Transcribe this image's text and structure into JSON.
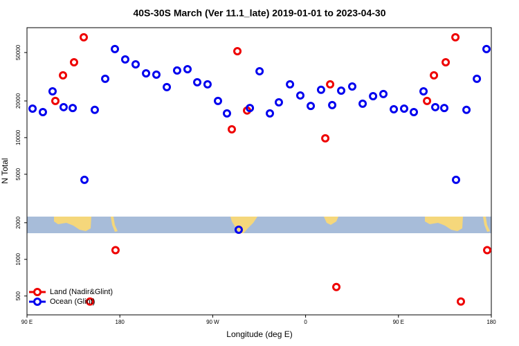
{
  "chart_data": {
    "type": "scatter",
    "title": "40S-30S March (Ver 11.1_late)   2019-01-01 to 2023-04-30",
    "x_label": "Longitude (deg E)",
    "y_label": "N Total",
    "log_y": true,
    "legend": "lower left",
    "xlim": [
      90,
      540
    ],
    "ylim": [
      350,
      80000
    ],
    "xticks": [
      {
        "value": 90,
        "label": "90 E"
      },
      180,
      {
        "value": 270,
        "label": "90 W"
      },
      {
        "value": 360,
        "label": "0"
      },
      {
        "value": 450,
        "label": "90 E"
      },
      {
        "value": 540,
        "label": "180"
      }
    ],
    "yticks": [
      500,
      1000,
      2000,
      5000,
      10000,
      20000,
      50000
    ],
    "series": [
      {
        "name": "Land (Nadir&Glint)",
        "color": "#ee0000",
        "x": [
          117.5,
          124.9,
          135.6,
          145.0,
          151.0,
          175.8,
          288.5,
          293.9,
          303.3,
          379.1,
          383.8,
          389.8,
          477.7,
          484.4,
          495.8,
          505.2,
          510.5,
          536.0
        ],
        "values": [
          20000,
          32500,
          41600,
          66700,
          450,
          1190,
          11700,
          51300,
          16700,
          9870,
          27400,
          593,
          20000,
          32500,
          41600,
          66700,
          450,
          1190
        ]
      },
      {
        "name": "Ocean (Glint)",
        "color": "#0000ee",
        "x": [
          95.4,
          105.4,
          114.8,
          125.5,
          134.3,
          145.7,
          155.7,
          165.8,
          175.2,
          185.2,
          195.3,
          205.4,
          215.4,
          225.5,
          235.5,
          245.6,
          255.0,
          265.0,
          275.1,
          283.8,
          295.2,
          306.0,
          315.4,
          325.4,
          334.1,
          344.9,
          354.9,
          365.0,
          375.0,
          385.8,
          394.5,
          405.2,
          415.3,
          425.4,
          435.4,
          445.5,
          455.5,
          464.9,
          474.3,
          485.7,
          494.4,
          505.8,
          515.9,
          526.0,
          535.3
        ],
        "values": [
          17300,
          16200,
          24000,
          17800,
          17500,
          4500,
          16900,
          30400,
          53400,
          43900,
          40000,
          33700,
          32900,
          26000,
          35600,
          36500,
          28500,
          27400,
          20000,
          15800,
          1750,
          17500,
          35100,
          15800,
          19500,
          27400,
          22200,
          18200,
          24700,
          18500,
          24300,
          26300,
          19000,
          21900,
          22800,
          17100,
          17300,
          16200,
          24000,
          17800,
          17500,
          4500,
          16900,
          30400,
          53400
        ]
      }
    ]
  }
}
